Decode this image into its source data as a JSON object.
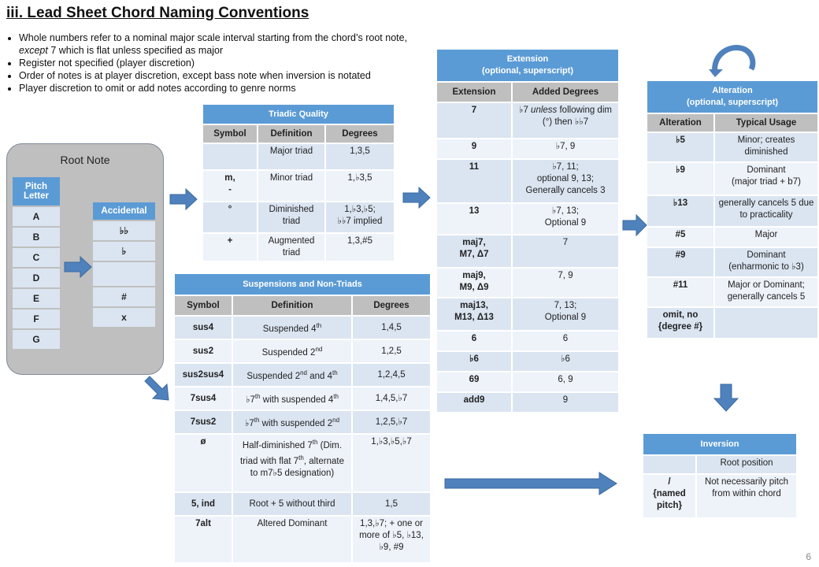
{
  "title": "iii. Lead Sheet Chord Naming Conventions",
  "bullets": [
    "Whole numbers refer to a nominal major scale interval starting from the chord’s root note, except 7 which is flat unless specified as major",
    "Register not specified (player discretion)",
    "Order of notes is at player discretion, except bass note when inversion is notated",
    "Player discretion to omit or add notes according to genre norms"
  ],
  "bullet1_parts": {
    "a": "Whole numbers refer to a nominal major scale interval starting from the chord’s root note, ",
    "b": "except",
    "c": " 7 which is flat unless specified as major"
  },
  "root_note": {
    "label": "Root Note",
    "pitch_header": "Pitch Letter",
    "pitches": [
      "A",
      "B",
      "C",
      "D",
      "E",
      "F",
      "G"
    ],
    "accidental_header": "Accidental",
    "accidentals": [
      "♭♭",
      "♭",
      "",
      "#",
      "x"
    ]
  },
  "triadic": {
    "caption": "Triadic Quality",
    "headers": [
      "Symbol",
      "Definition",
      "Degrees"
    ],
    "rows": [
      [
        "",
        "Major triad",
        "1,3,5"
      ],
      [
        "m,\n-",
        "Minor triad",
        "1,♭3,5"
      ],
      [
        "°",
        "Diminished triad",
        "1,♭3,♭5;\n♭♭7 implied"
      ],
      [
        "+",
        "Augmented triad",
        "1,3,#5"
      ]
    ]
  },
  "suspensions": {
    "caption": "Suspensions and Non-Triads",
    "headers": [
      "Symbol",
      "Definition",
      "Degrees"
    ],
    "rows": [
      [
        "sus4",
        "Suspended 4th",
        "1,4,5"
      ],
      [
        "sus2",
        "Suspended 2nd",
        "1,2,5"
      ],
      [
        "sus2sus4",
        "Suspended 2nd and 4th",
        "1,2,4,5"
      ],
      [
        "7sus4",
        "♭7th with suspended 4th",
        "1,4,5,♭7"
      ],
      [
        "7sus2",
        "♭7th with suspended 2nd",
        "1,2,5,♭7"
      ],
      [
        "ø",
        "Half-diminished 7th (Dim. triad with flat 7th, alternate to m7♭5 designation)",
        "1,♭3,♭5,♭7"
      ],
      [
        "5, ind",
        "Root + 5 without third",
        "1,5"
      ],
      [
        "7alt",
        "Altered Dominant",
        "1,3,♭7; + one or more of ♭5, ♭13, ♭9, #9"
      ]
    ]
  },
  "extension": {
    "caption_line1": "Extension",
    "caption_line2": "(optional, superscript)",
    "headers": [
      "Extension",
      "Added Degrees"
    ],
    "rows": [
      [
        "7",
        "♭7 unless following dim (°) then ♭♭7"
      ],
      [
        "9",
        "♭7, 9"
      ],
      [
        "11",
        "♭7, 11;\noptional 9, 13;\nGenerally cancels 3"
      ],
      [
        "13",
        "♭7, 13;\nOptional 9"
      ],
      [
        "maj7,\nM7, Δ7",
        "7"
      ],
      [
        "maj9,\nM9, Δ9",
        "7, 9"
      ],
      [
        "maj13,\nM13, Δ13",
        "7, 13;\nOptional 9"
      ],
      [
        "6",
        "6"
      ],
      [
        "♭6",
        "♭6"
      ],
      [
        "69",
        "6, 9"
      ],
      [
        "add9",
        "9"
      ]
    ]
  },
  "alteration": {
    "caption_line1": "Alteration",
    "caption_line2": "(optional, superscript)",
    "headers": [
      "Alteration",
      "Typical Usage"
    ],
    "rows": [
      [
        "♭5",
        "Minor; creates diminished"
      ],
      [
        "♭9",
        "Dominant\n(major triad + b7)"
      ],
      [
        "♭13",
        "generally cancels 5 due to practicality"
      ],
      [
        "#5",
        "Major"
      ],
      [
        "#9",
        "Dominant\n(enharmonic to ♭3)"
      ],
      [
        "#11",
        "Major or Dominant; generally cancels 5"
      ],
      [
        "omit, no\n{degree #}",
        ""
      ]
    ]
  },
  "inversion": {
    "caption": "Inversion",
    "rows": [
      [
        "",
        "Root position"
      ],
      [
        "/\n{named\npitch}",
        "Not necessarily pitch from within chord"
      ]
    ]
  },
  "page_number": "6",
  "colors": {
    "header_blue": "#5b9bd5",
    "row_light": "#dbe5f1",
    "row_lighter": "#eef2f9",
    "col_header_gray": "#bfbfbf",
    "arrow_blue": "#4f81bd"
  }
}
